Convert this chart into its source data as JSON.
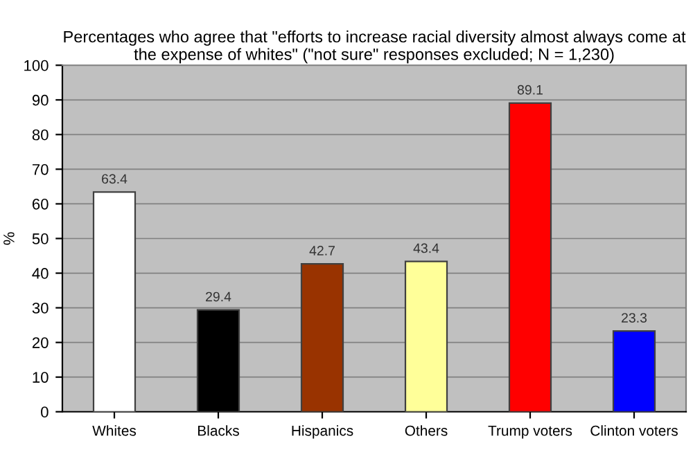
{
  "chart_data": {
    "type": "bar",
    "title": "Percentages who agree that \"efforts to increase racial diversity almost always come at the expense of whites\" (\"not sure\" responses excluded; N = 1,230)",
    "ylabel": "%",
    "categories": [
      "Whites",
      "Blacks",
      "Hispanics",
      "Others",
      "Trump voters",
      "Clinton voters"
    ],
    "values": [
      63.4,
      29.4,
      42.7,
      43.4,
      89.1,
      23.3
    ],
    "colors": [
      "#ffffff",
      "#000000",
      "#993300",
      "#ffff99",
      "#ff0000",
      "#0000ff"
    ],
    "ylim": [
      0,
      100
    ],
    "yticks": [
      0,
      10,
      20,
      30,
      40,
      50,
      60,
      70,
      80,
      90,
      100
    ],
    "grid": "y",
    "data_labels": true,
    "legend": false
  }
}
